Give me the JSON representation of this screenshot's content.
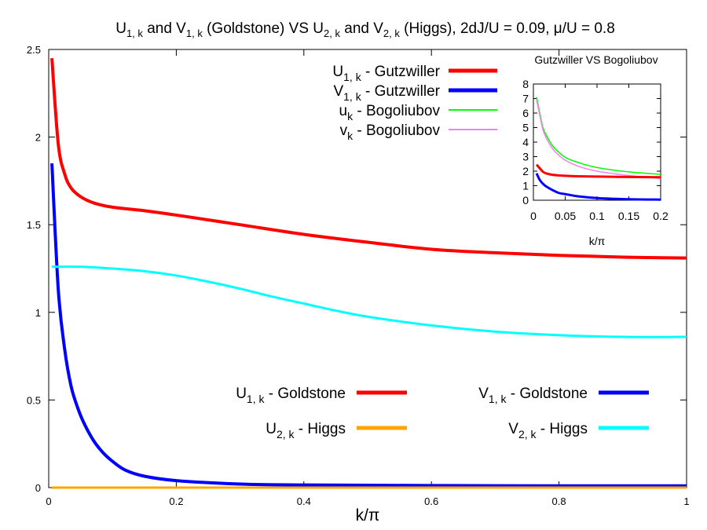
{
  "chart_data": [
    {
      "type": "line",
      "title": "U₁, ₖ and V₁, ₖ (Goldstone) VS U₂, ₖ and V₂, ₖ (Higgs), 2dJ/U = 0.09, μ/U = 0.8",
      "title_parts": {
        "p1": "U",
        "p1sub": "1, k",
        "p2": " and V",
        "p2sub": "1, k",
        "p3": " (Goldstone) VS U",
        "p3sub": "2, k",
        "p4": " and V",
        "p4sub": "2, k",
        "p5": " (Higgs), 2dJ/U = 0.09, μ/U = 0.8"
      },
      "xlabel": "k/π",
      "ylabel": "",
      "xlim": [
        0,
        1
      ],
      "ylim": [
        0,
        2.5
      ],
      "x_ticks": [
        "0",
        "0.2",
        "0.4",
        "0.6",
        "0.8",
        "1"
      ],
      "y_ticks": [
        "0",
        "0.5",
        "1",
        "1.5",
        "2",
        "2.5"
      ],
      "series": [
        {
          "name": "U₁, ₖ - Goldstone",
          "label_main": "U",
          "label_sub": "1, k",
          "label_rest": " - Goldstone",
          "color": "#ff0000",
          "x": [
            0.005,
            0.015,
            0.025,
            0.035,
            0.05,
            0.07,
            0.1,
            0.15,
            0.2,
            0.3,
            0.4,
            0.5,
            0.6,
            0.7,
            0.8,
            0.9,
            1.0
          ],
          "y": [
            2.45,
            1.96,
            1.79,
            1.71,
            1.66,
            1.625,
            1.6,
            1.58,
            1.555,
            1.5,
            1.445,
            1.4,
            1.36,
            1.34,
            1.325,
            1.315,
            1.31
          ]
        },
        {
          "name": "V₁, ₖ - Goldstone",
          "label_main": "V",
          "label_sub": "1, k",
          "label_rest": " - Goldstone",
          "color": "#0000ff",
          "x": [
            0.005,
            0.015,
            0.025,
            0.035,
            0.045,
            0.055,
            0.07,
            0.085,
            0.1,
            0.12,
            0.15,
            0.2,
            0.3,
            0.4,
            0.6,
            0.8,
            1.0
          ],
          "y": [
            1.85,
            1.13,
            0.79,
            0.58,
            0.46,
            0.37,
            0.27,
            0.2,
            0.15,
            0.1,
            0.065,
            0.04,
            0.02,
            0.015,
            0.012,
            0.01,
            0.01
          ]
        },
        {
          "name": "U₂, ₖ - Higgs",
          "label_main": "U",
          "label_sub": "2, k",
          "label_rest": " - Higgs",
          "color": "#ffa500",
          "x": [
            0.005,
            1.0
          ],
          "y": [
            0.0,
            0.0
          ]
        },
        {
          "name": "V₂, ₖ - Higgs",
          "label_main": "V",
          "label_sub": "2, k",
          "label_rest": " - Higgs",
          "color": "#00ffff",
          "x": [
            0.005,
            0.05,
            0.1,
            0.15,
            0.2,
            0.25,
            0.3,
            0.35,
            0.4,
            0.45,
            0.5,
            0.6,
            0.7,
            0.8,
            0.9,
            1.0
          ],
          "y": [
            1.26,
            1.26,
            1.25,
            1.235,
            1.21,
            1.175,
            1.135,
            1.09,
            1.05,
            1.01,
            0.975,
            0.925,
            0.89,
            0.87,
            0.86,
            0.86
          ]
        }
      ],
      "legend_placement": "bottom-center",
      "legend_top_entries": [
        {
          "main": "U",
          "sub": "1, k",
          "rest": " - Gutzwiller",
          "color": "#ff0000"
        },
        {
          "main": "V",
          "sub": "1, k",
          "rest": " - Gutzwiller",
          "color": "#0000ff"
        },
        {
          "main": "u",
          "sub": "k",
          "rest": " - Bogoliubov",
          "color": "#00ff00"
        },
        {
          "main": "v",
          "sub": "k",
          "rest": " - Bogoliubov",
          "color": "#ee82ee"
        }
      ]
    },
    {
      "type": "line",
      "title": "Gutzwiller VS Bogoliubov",
      "xlabel": "k/π",
      "xlim": [
        0,
        0.2
      ],
      "ylim": [
        0,
        8
      ],
      "x_ticks": [
        "0",
        "0.05",
        "0.1",
        "0.15",
        "0.2"
      ],
      "y_ticks": [
        "0",
        "1",
        "2",
        "3",
        "4",
        "5",
        "6",
        "7",
        "8"
      ],
      "series": [
        {
          "name": "U₁, ₖ - Gutzwiller",
          "color": "#ff0000",
          "x": [
            0.005,
            0.01,
            0.015,
            0.02,
            0.03,
            0.04,
            0.05,
            0.07,
            0.1,
            0.15,
            0.2
          ],
          "y": [
            2.45,
            2.2,
            1.96,
            1.85,
            1.75,
            1.71,
            1.68,
            1.65,
            1.63,
            1.6,
            1.58
          ]
        },
        {
          "name": "V₁, ₖ - Gutzwiller",
          "color": "#0000ff",
          "x": [
            0.005,
            0.01,
            0.015,
            0.02,
            0.03,
            0.04,
            0.05,
            0.07,
            0.1,
            0.15,
            0.2
          ],
          "y": [
            1.85,
            1.4,
            1.13,
            0.95,
            0.7,
            0.5,
            0.42,
            0.27,
            0.15,
            0.07,
            0.04
          ]
        },
        {
          "name": "uₖ - Bogoliubov",
          "color": "#00ff00",
          "x": [
            0.005,
            0.01,
            0.015,
            0.02,
            0.03,
            0.04,
            0.05,
            0.07,
            0.1,
            0.15,
            0.2
          ],
          "y": [
            7.1,
            6.0,
            5.0,
            4.5,
            3.75,
            3.3,
            2.95,
            2.6,
            2.25,
            1.95,
            1.78
          ]
        },
        {
          "name": "vₖ - Bogoliubov",
          "color": "#ee82ee",
          "x": [
            0.005,
            0.01,
            0.015,
            0.02,
            0.03,
            0.04,
            0.05,
            0.07,
            0.1,
            0.15,
            0.2
          ],
          "y": [
            6.9,
            5.85,
            4.85,
            4.3,
            3.55,
            3.1,
            2.75,
            2.35,
            2.0,
            1.7,
            1.5
          ]
        }
      ]
    }
  ]
}
